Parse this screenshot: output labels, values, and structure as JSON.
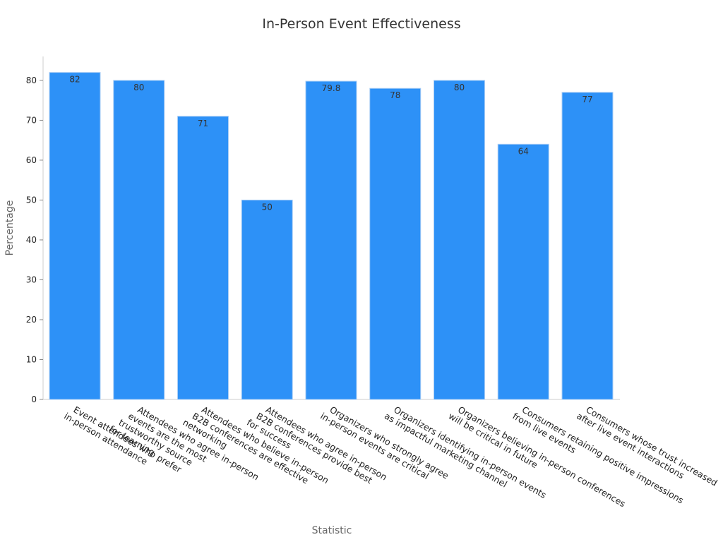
{
  "chart_data": {
    "type": "bar",
    "title": "In-Person Event Effectiveness",
    "xlabel": "Statistic",
    "ylabel": "Percentage",
    "ylim": [
      0,
      86
    ],
    "yticks": [
      0,
      10,
      20,
      30,
      40,
      50,
      60,
      70,
      80
    ],
    "grid": false,
    "bar_color": "#2d91f7",
    "categories": [
      [
        "Event attendees who prefer",
        "in-person attendance"
      ],
      [
        "Attendees who agree in-person",
        "events are the most",
        "trustworthy source",
        "for learning"
      ],
      [
        "Attendees who believe in-person",
        "B2B conferences are effective",
        "networking"
      ],
      [
        "Attendees who agree in-person",
        "B2B conferences provide best",
        "for success"
      ],
      [
        "Organizers who strongly agree",
        "in-person events are critical"
      ],
      [
        "Organizers identifying in-person events",
        "as impactful marketing channel"
      ],
      [
        "Organizers believing in-person conferences",
        "will be critical in future"
      ],
      [
        "Consumers retaining positive impressions",
        "from live events"
      ],
      [
        "Consumers whose trust increased",
        "after live event interactions"
      ]
    ],
    "values": [
      82,
      80,
      71,
      50,
      79.8,
      78,
      80,
      64,
      77
    ],
    "data_labels": [
      "82",
      "80",
      "71",
      "50",
      "79.8",
      "78",
      "80",
      "64",
      "77"
    ]
  }
}
